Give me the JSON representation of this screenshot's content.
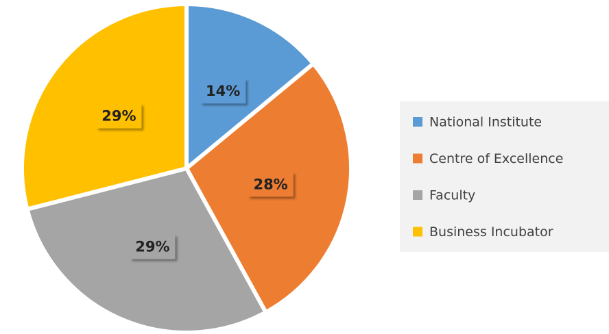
{
  "chart_data": {
    "type": "pie",
    "categories": [
      "National Institute",
      "Centre of Excellence",
      "Faculty",
      "Business Incubator"
    ],
    "values": [
      14,
      28,
      29,
      29
    ],
    "value_labels": [
      "14%",
      "28%",
      "29%",
      "29%"
    ],
    "colors": [
      "#5b9bd5",
      "#ed7d31",
      "#a5a5a5",
      "#ffc000"
    ],
    "legend": "right"
  }
}
